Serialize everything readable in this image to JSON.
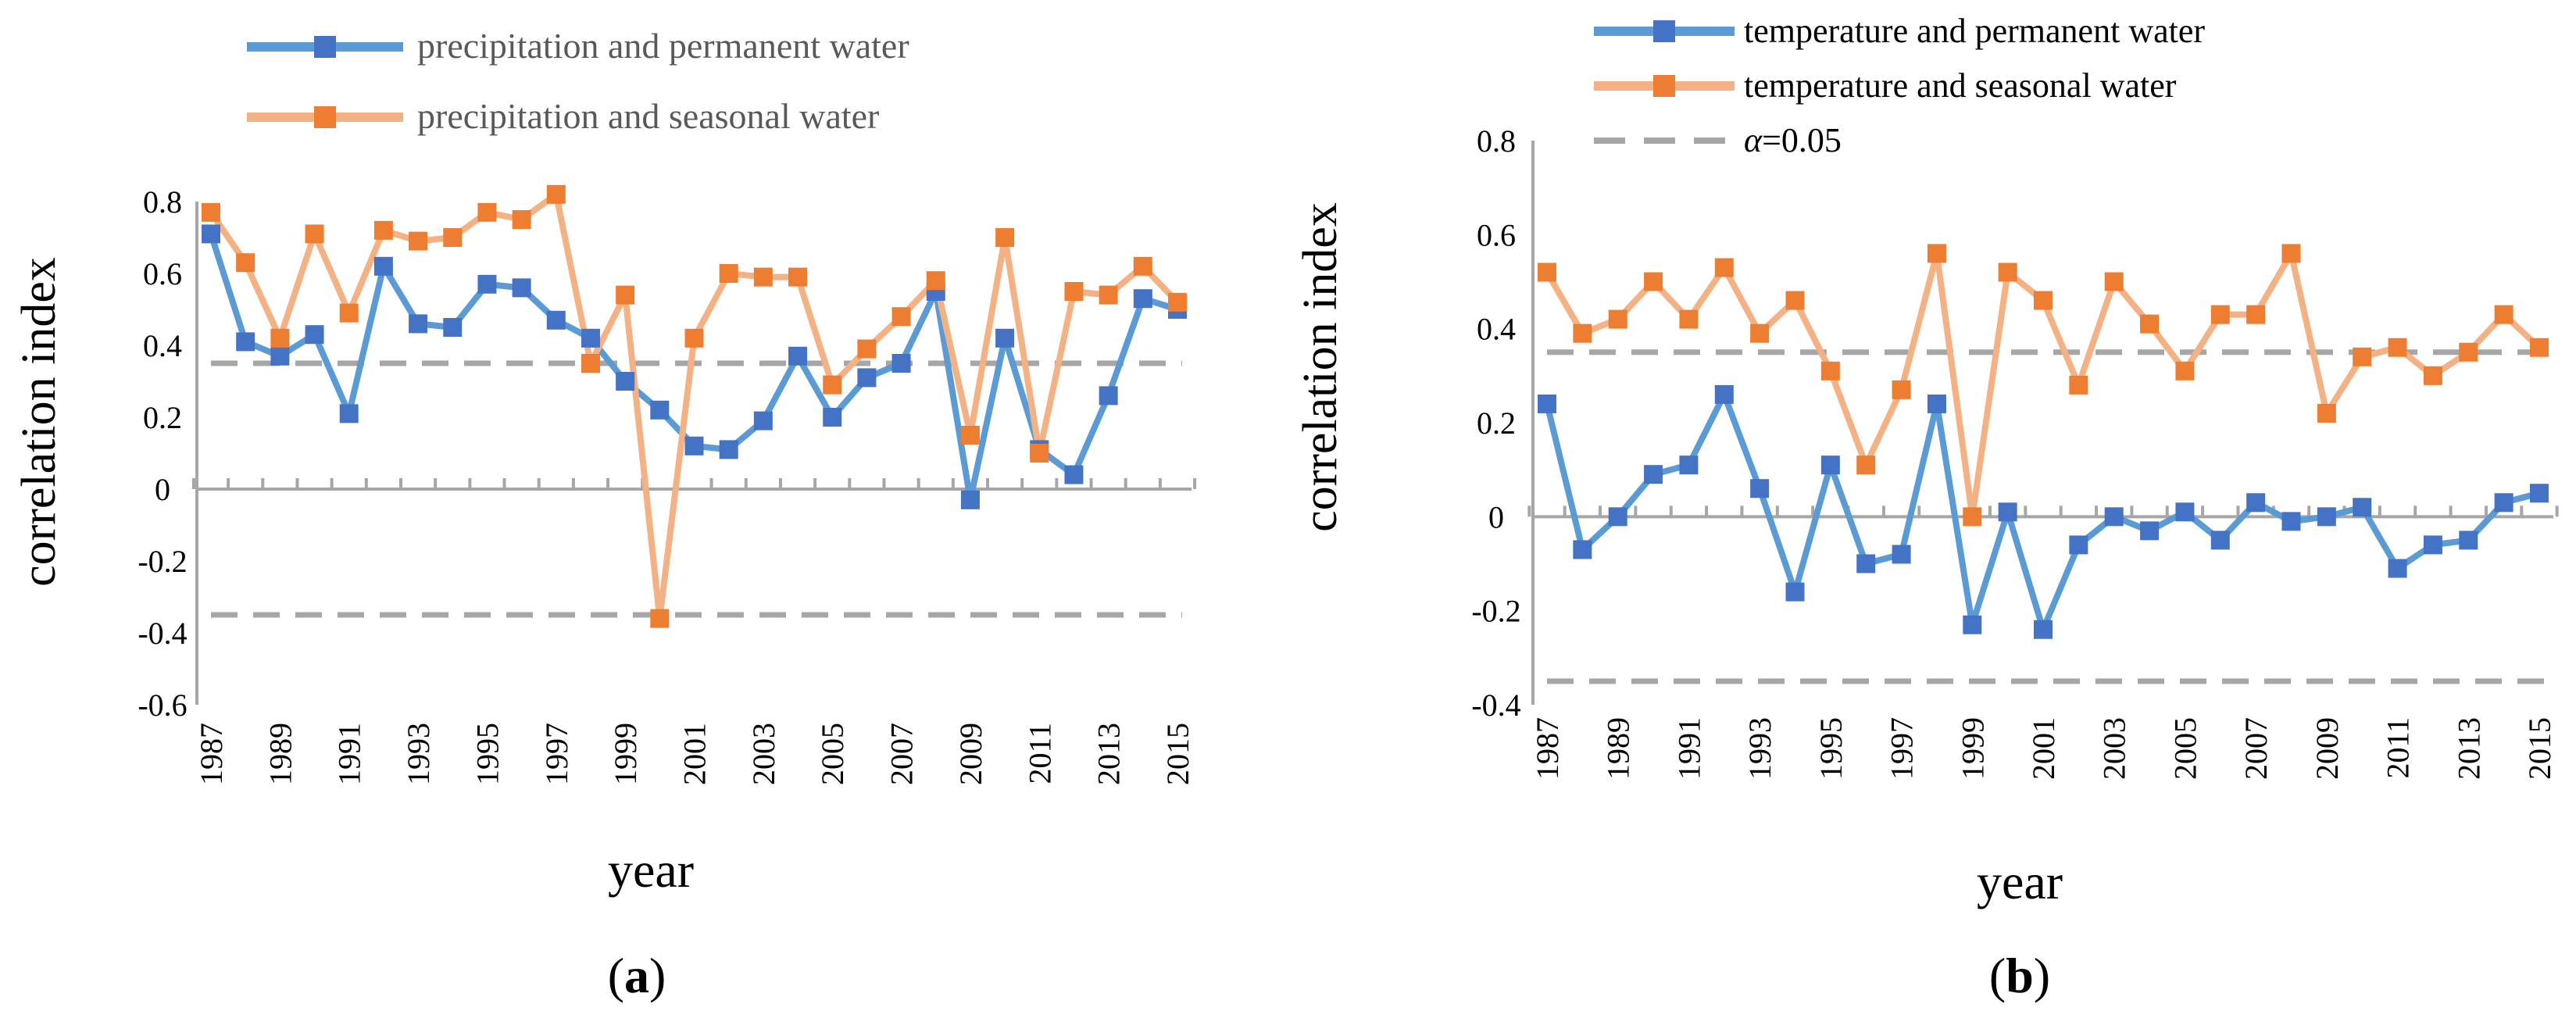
{
  "panels": {
    "a": {
      "label_open": "(",
      "label_letter": "a",
      "label_close": ")"
    },
    "b": {
      "label_open": "(",
      "label_letter": "b",
      "label_close": ")"
    }
  },
  "colors": {
    "series_blue": "#5b9bd5",
    "series_orange": "#f4b183",
    "marker_blue": "#4472c4",
    "marker_orange": "#ed7d31",
    "threshold": "#a6a6a6",
    "axis": "#a6a6a6"
  },
  "chart_data": [
    {
      "type": "line",
      "panel": "a",
      "title": "",
      "xlabel": "year",
      "ylabel": "correlation index",
      "x": [
        1987,
        1988,
        1989,
        1990,
        1991,
        1992,
        1993,
        1994,
        1995,
        1996,
        1997,
        1998,
        1999,
        2000,
        2001,
        2002,
        2003,
        2004,
        2005,
        2006,
        2007,
        2008,
        2009,
        2010,
        2011,
        2012,
        2013,
        2014,
        2015
      ],
      "x_tick_labels": [
        "1987",
        "1989",
        "1991",
        "1993",
        "1995",
        "1997",
        "1999",
        "2001",
        "2003",
        "2005",
        "2007",
        "2009",
        "2011",
        "2013",
        "2015"
      ],
      "ylim": [
        -0.6,
        0.8
      ],
      "y_tick_labels": [
        "0.8",
        "0.6",
        "0.4",
        "0.2",
        "0",
        "-0.2",
        "-0.4",
        "-0.6"
      ],
      "legend_position": "top",
      "series": [
        {
          "name": "precipitation and permanent water",
          "color": "blue",
          "values": [
            0.71,
            0.41,
            0.37,
            0.43,
            0.21,
            0.62,
            0.46,
            0.45,
            0.57,
            0.56,
            0.47,
            0.42,
            0.3,
            0.22,
            0.12,
            0.11,
            0.19,
            0.37,
            0.2,
            0.31,
            0.35,
            0.55,
            -0.03,
            0.42,
            0.11,
            0.04,
            0.26,
            0.53,
            0.5
          ]
        },
        {
          "name": "precipitation and seasonal water",
          "color": "orange",
          "values": [
            0.77,
            0.63,
            0.42,
            0.71,
            0.49,
            0.72,
            0.69,
            0.7,
            0.77,
            0.75,
            0.82,
            0.35,
            0.54,
            -0.36,
            0.42,
            0.6,
            0.59,
            0.59,
            0.29,
            0.39,
            0.48,
            0.58,
            0.15,
            0.7,
            0.1,
            0.55,
            0.54,
            0.62,
            0.52
          ]
        }
      ],
      "threshold_lines": [
        0.35,
        -0.35
      ]
    },
    {
      "type": "line",
      "panel": "b",
      "title": "",
      "xlabel": "year",
      "ylabel": "correlation index",
      "x": [
        1987,
        1988,
        1989,
        1990,
        1991,
        1992,
        1993,
        1994,
        1995,
        1996,
        1997,
        1998,
        1999,
        2000,
        2001,
        2002,
        2003,
        2004,
        2005,
        2006,
        2007,
        2008,
        2009,
        2010,
        2011,
        2012,
        2013,
        2014,
        2015
      ],
      "x_tick_labels": [
        "1987",
        "1989",
        "1991",
        "1993",
        "1995",
        "1997",
        "1999",
        "2001",
        "2003",
        "2005",
        "2007",
        "2009",
        "2011",
        "2013",
        "2015"
      ],
      "ylim": [
        -0.4,
        0.8
      ],
      "y_tick_labels": [
        "0.8",
        "0.6",
        "0.4",
        "0.2",
        "0",
        "-0.2",
        "-0.4"
      ],
      "legend_position": "top",
      "series": [
        {
          "name": "temperature and permanent water",
          "color": "blue",
          "values": [
            0.24,
            -0.07,
            0.0,
            0.09,
            0.11,
            0.26,
            0.06,
            -0.16,
            0.11,
            -0.1,
            -0.08,
            0.24,
            -0.23,
            0.01,
            -0.24,
            -0.06,
            0.0,
            -0.03,
            0.01,
            -0.05,
            0.03,
            -0.01,
            0.0,
            0.02,
            -0.11,
            -0.06,
            -0.05,
            0.03,
            0.05
          ]
        },
        {
          "name": "temperature and seasonal water",
          "color": "orange",
          "values": [
            0.52,
            0.39,
            0.42,
            0.5,
            0.42,
            0.53,
            0.39,
            0.46,
            0.31,
            0.11,
            0.27,
            0.56,
            0.0,
            0.52,
            0.46,
            0.28,
            0.5,
            0.41,
            0.31,
            0.43,
            0.43,
            0.56,
            0.22,
            0.34,
            0.36,
            0.3,
            0.35,
            0.43,
            0.36
          ]
        }
      ],
      "threshold_lines": [
        0.35,
        -0.35
      ],
      "threshold_legend": {
        "symbol": "α",
        "label": "=0.05"
      }
    }
  ]
}
